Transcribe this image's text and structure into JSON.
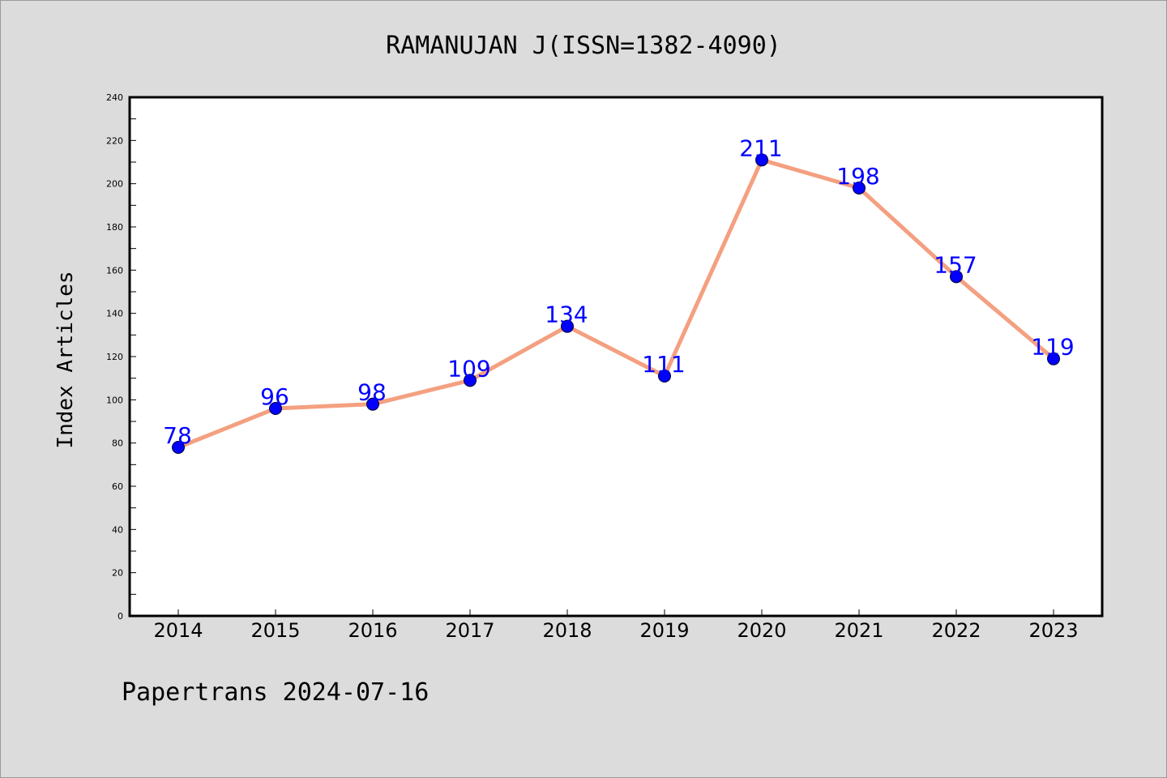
{
  "chart_data": {
    "type": "line",
    "title": "RAMANUJAN J(ISSN=1382-4090)",
    "ylabel": "Index Articles",
    "xlabel": "",
    "categories": [
      "2014",
      "2015",
      "2016",
      "2017",
      "2018",
      "2019",
      "2020",
      "2021",
      "2022",
      "2023"
    ],
    "series": [
      {
        "values": [
          78,
          96,
          98,
          109,
          134,
          111,
          211,
          198,
          157,
          119
        ]
      }
    ],
    "ylim": [
      0,
      240
    ],
    "y_ticks": [
      0,
      20,
      40,
      60,
      80,
      100,
      120,
      140,
      160,
      180,
      200,
      220,
      240
    ],
    "grid": false,
    "data_labels": true,
    "colors": {
      "line": "#f4a080",
      "marker_fill": "#0000ff",
      "marker_stroke": "#000033",
      "data_label": "#0000ff",
      "background": "#dcdcdc",
      "plot_background": "#ffffff"
    }
  },
  "footer": {
    "text": "Papertrans 2024-07-16"
  }
}
